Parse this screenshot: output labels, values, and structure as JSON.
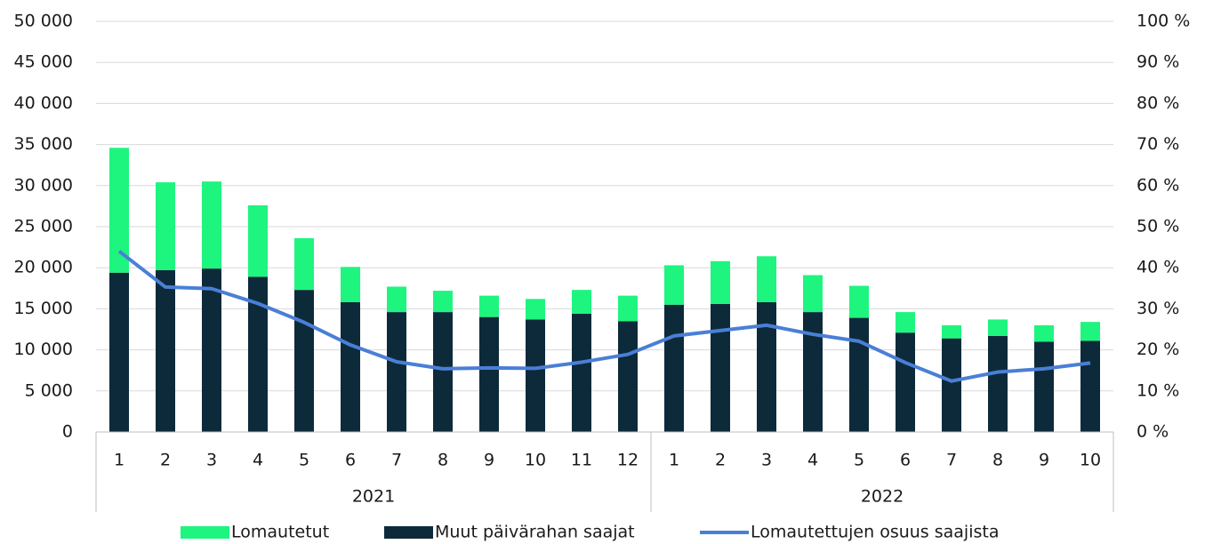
{
  "chart_data": {
    "type": "bar",
    "stacked": true,
    "categories": [
      "1",
      "2",
      "3",
      "4",
      "5",
      "6",
      "7",
      "8",
      "9",
      "10",
      "11",
      "12",
      "1",
      "2",
      "3",
      "4",
      "5",
      "6",
      "7",
      "8",
      "9",
      "10"
    ],
    "category_groups": [
      {
        "label": "2021",
        "span": 12
      },
      {
        "label": "2022",
        "span": 10
      }
    ],
    "series": [
      {
        "name": "Lomautetut",
        "color": "#1ef57f",
        "stack_order": 1,
        "values": [
          15200,
          10700,
          10600,
          8700,
          6300,
          4300,
          3100,
          2600,
          2600,
          2500,
          2900,
          3100,
          4800,
          5200,
          5600,
          4500,
          3900,
          2500,
          1600,
          2000,
          2000,
          2300
        ]
      },
      {
        "name": "Muut päivärahan saajat",
        "color": "#0d2a3b",
        "stack_order": 0,
        "values": [
          19400,
          19700,
          19900,
          18900,
          17300,
          15800,
          14600,
          14600,
          14000,
          13700,
          14400,
          13500,
          15500,
          15600,
          15800,
          14600,
          13900,
          12100,
          11400,
          11700,
          11000,
          11100
        ]
      },
      {
        "name": "Lomautettujen osuus saajista",
        "color": "#4a7fd6",
        "type": "line",
        "axis": "y2",
        "values": [
          44,
          35.3,
          34.9,
          31.3,
          26.7,
          21.2,
          17.1,
          15.4,
          15.6,
          15.5,
          17,
          18.9,
          23.4,
          24.7,
          26,
          23.8,
          22.1,
          16.9,
          12.4,
          14.6,
          15.4,
          16.8
        ]
      }
    ],
    "ylim": [
      0,
      50000
    ],
    "yticks": [
      0,
      {
        "value": 5000,
        "label": "5 000"
      },
      {
        "value": 10000,
        "label": "10 000"
      },
      {
        "value": 15000,
        "label": "15 000"
      },
      {
        "value": 20000,
        "label": "20 000"
      },
      {
        "value": 25000,
        "label": "25 000"
      },
      {
        "value": 30000,
        "label": "30 000"
      },
      {
        "value": 35000,
        "label": "35 000"
      },
      {
        "value": 40000,
        "label": "40 000"
      },
      {
        "value": 45000,
        "label": "45 000"
      },
      {
        "value": 50000,
        "label": "50 000"
      }
    ],
    "y2lim": [
      0,
      100
    ],
    "y2ticks": [
      {
        "value": 0,
        "label": "0 %"
      },
      {
        "value": 10,
        "label": "10 %"
      },
      {
        "value": 20,
        "label": "20 %"
      },
      {
        "value": 30,
        "label": "30 %"
      },
      {
        "value": 40,
        "label": "40 %"
      },
      {
        "value": 50,
        "label": "50 %"
      },
      {
        "value": 60,
        "label": "60 %"
      },
      {
        "value": 70,
        "label": "70 %"
      },
      {
        "value": 80,
        "label": "80 %"
      },
      {
        "value": 90,
        "label": "90 %"
      },
      {
        "value": 100,
        "label": "100 %"
      }
    ],
    "grid": true,
    "legend": "bottom"
  }
}
